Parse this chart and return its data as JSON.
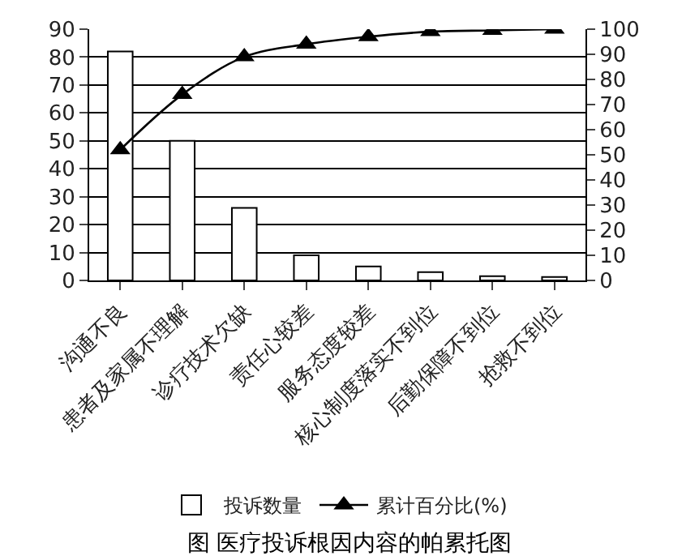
{
  "chart_data": {
    "type": "bar",
    "title": "图 医疗投诉根因内容的帕累托图",
    "categories": [
      "沟通不良",
      "患者及家属不理解",
      "诊疗技术欠缺",
      "责任心较差",
      "服务态度较差",
      "核心制度落实不到位",
      "后勤保障不到位",
      "抢救不到位"
    ],
    "series": [
      {
        "name": "投诉数量",
        "color": "#ffffff",
        "values": [
          82,
          50,
          26,
          9,
          5,
          3,
          1.5,
          1.2
        ]
      },
      {
        "name": "累计百分比(%)",
        "type": "line",
        "axis": "y2",
        "color": "#000000",
        "marker": "triangle",
        "values": [
          52,
          74,
          89,
          94,
          97,
          99,
          99.5,
          100
        ]
      }
    ],
    "ylim": [
      0,
      90
    ],
    "yticks": [
      0,
      10,
      20,
      30,
      40,
      50,
      60,
      70,
      80,
      90
    ],
    "y2lim": [
      0,
      100
    ],
    "y2ticks": [
      0,
      10,
      20,
      30,
      40,
      50,
      60,
      70,
      80,
      90,
      100
    ],
    "grid": "y",
    "legend": "bottom"
  }
}
